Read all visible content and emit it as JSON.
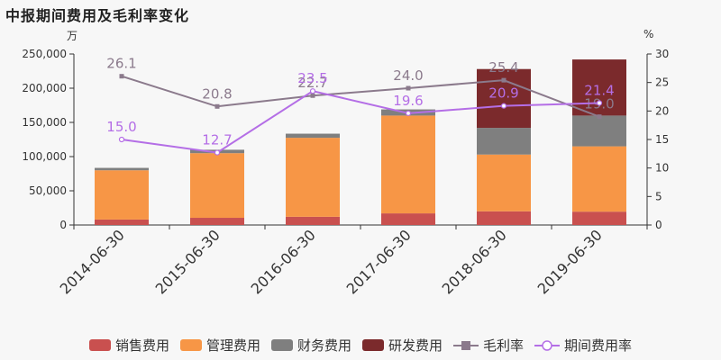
{
  "title": "中报期间费用及毛利率变化",
  "left_unit": "万",
  "right_unit": "%",
  "chart_data": {
    "type": "bar",
    "stacked": true,
    "categories": [
      "2014-06-30",
      "2015-06-30",
      "2016-06-30",
      "2017-06-30",
      "2018-06-30",
      "2019-06-30"
    ],
    "series": [
      {
        "name": "销售费用",
        "kind": "bar",
        "axis": "left",
        "color": "#c9504f",
        "values": [
          8000,
          10500,
          12000,
          17000,
          20000,
          19500
        ]
      },
      {
        "name": "管理费用",
        "kind": "bar",
        "axis": "left",
        "color": "#f79646",
        "values": [
          72000,
          94500,
          115500,
          143000,
          83000,
          95500
        ]
      },
      {
        "name": "财务费用",
        "kind": "bar",
        "axis": "left",
        "color": "#7f7f7f",
        "values": [
          3500,
          5000,
          6000,
          9000,
          39000,
          45000
        ]
      },
      {
        "name": "研发费用",
        "kind": "bar",
        "axis": "left",
        "color": "#7b2a2c",
        "values": [
          0,
          0,
          0,
          0,
          86000,
          82000
        ]
      },
      {
        "name": "毛利率",
        "kind": "line",
        "axis": "right",
        "color": "#8b7a8c",
        "marker": "square",
        "values": [
          26.1,
          20.8,
          22.7,
          24.0,
          25.4,
          19.0
        ]
      },
      {
        "name": "期间费用率",
        "kind": "line",
        "axis": "right",
        "color": "#b46ee6",
        "marker": "circle",
        "values": [
          15.0,
          12.7,
          23.5,
          19.6,
          20.9,
          21.4
        ]
      }
    ],
    "y_left": {
      "min": 0,
      "max": 250000,
      "ticks": [
        0,
        50000,
        100000,
        150000,
        200000,
        250000
      ],
      "tick_labels": [
        "0",
        "50,000",
        "100,000",
        "150,000",
        "200,000",
        "250,000"
      ]
    },
    "y_right": {
      "min": 0,
      "max": 30,
      "ticks": [
        0,
        5,
        10,
        15,
        20,
        25,
        30
      ]
    },
    "grid": false,
    "legend_position": "bottom"
  }
}
